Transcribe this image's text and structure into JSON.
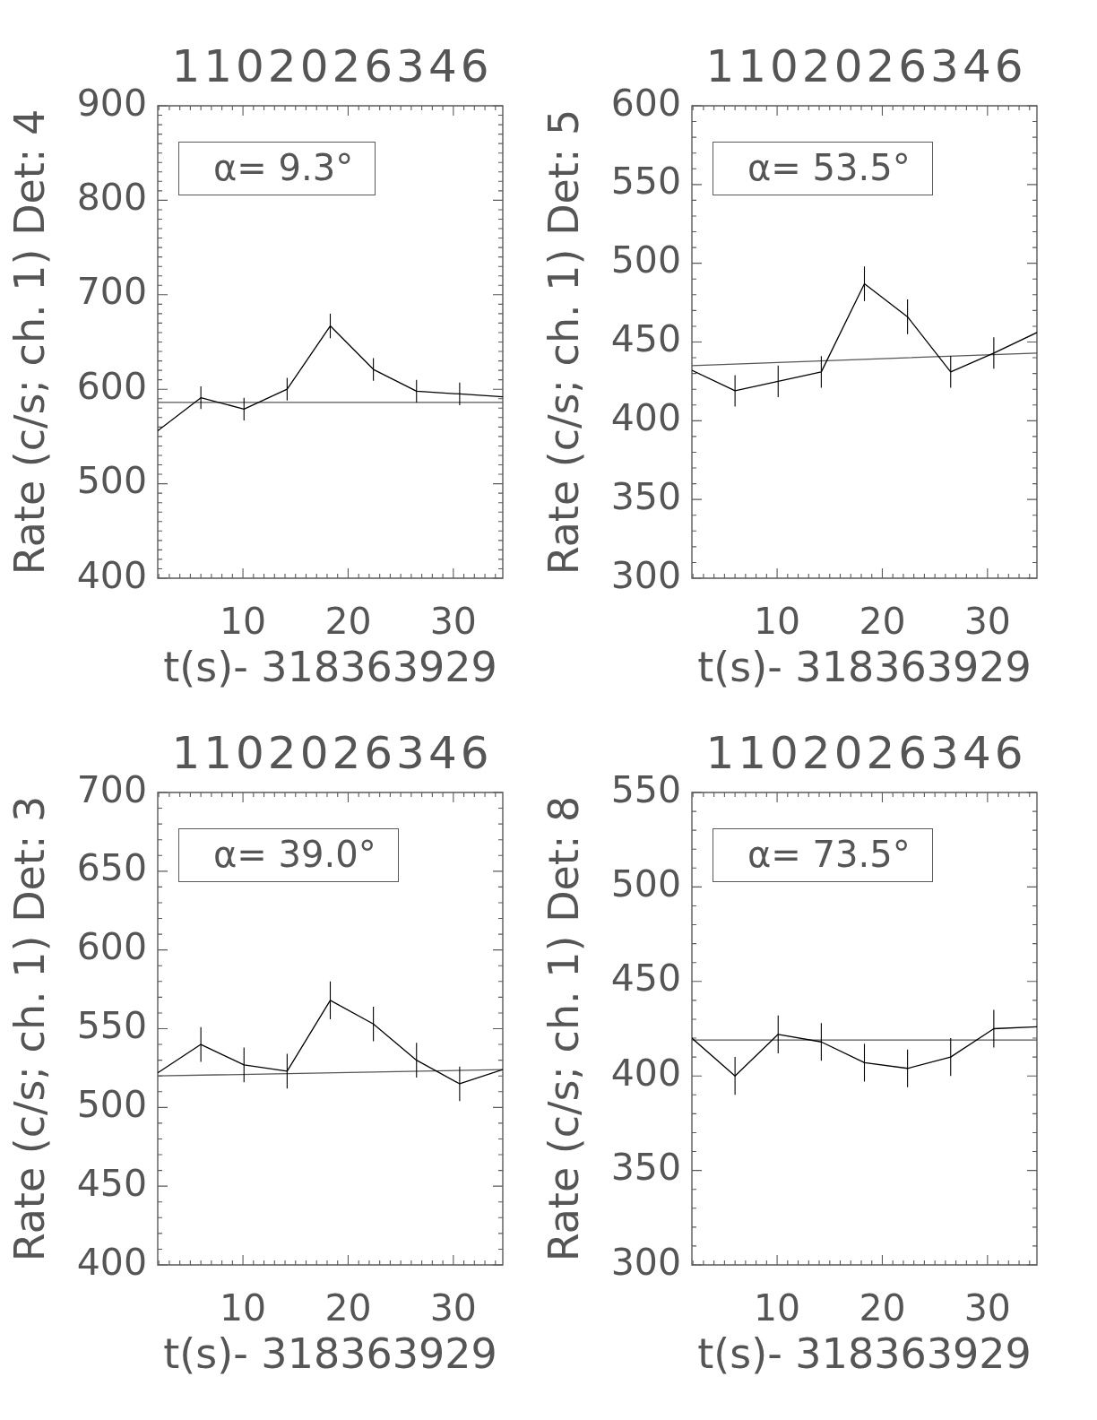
{
  "chart_data": [
    {
      "type": "line",
      "title": "1102026346",
      "xlabel": "t(s)- 318363929",
      "ylabel": "Rate (c/s; ch. 1) Det: 4",
      "annotations": [
        "α= 9.3°"
      ],
      "xlim": [
        1.9,
        34.7
      ],
      "xticks": [
        {
          "value": 2,
          "label": null
        },
        {
          "value": 3,
          "label": null
        },
        {
          "value": 4,
          "label": null
        },
        {
          "value": 5,
          "label": null
        },
        {
          "value": 6,
          "label": null
        },
        {
          "value": 7,
          "label": null
        },
        {
          "value": 8,
          "label": null
        },
        {
          "value": 9,
          "label": null
        },
        10,
        {
          "value": 11,
          "label": null
        },
        {
          "value": 12,
          "label": null
        },
        {
          "value": 13,
          "label": null
        },
        {
          "value": 14,
          "label": null
        },
        {
          "value": 15,
          "label": null
        },
        {
          "value": 16,
          "label": null
        },
        {
          "value": 17,
          "label": null
        },
        {
          "value": 18,
          "label": null
        },
        {
          "value": 19,
          "label": null
        },
        20,
        {
          "value": 21,
          "label": null
        },
        {
          "value": 22,
          "label": null
        },
        {
          "value": 23,
          "label": null
        },
        {
          "value": 24,
          "label": null
        },
        {
          "value": 25,
          "label": null
        },
        {
          "value": 26,
          "label": null
        },
        {
          "value": 27,
          "label": null
        },
        {
          "value": 28,
          "label": null
        },
        {
          "value": 29,
          "label": null
        },
        30,
        {
          "value": 31,
          "label": null
        },
        {
          "value": 32,
          "label": null
        },
        {
          "value": 33,
          "label": null
        },
        {
          "value": 34,
          "label": null
        }
      ],
      "ylim": [
        400,
        900
      ],
      "yticks": [
        400,
        {
          "value": 410,
          "label": null
        },
        {
          "value": 420,
          "label": null
        },
        {
          "value": 430,
          "label": null
        },
        {
          "value": 440,
          "label": null
        },
        {
          "value": 450,
          "label": null
        },
        {
          "value": 460,
          "label": null
        },
        {
          "value": 470,
          "label": null
        },
        {
          "value": 480,
          "label": null
        },
        {
          "value": 490,
          "label": null
        },
        500,
        {
          "value": 510,
          "label": null
        },
        {
          "value": 520,
          "label": null
        },
        {
          "value": 530,
          "label": null
        },
        {
          "value": 540,
          "label": null
        },
        {
          "value": 550,
          "label": null
        },
        {
          "value": 560,
          "label": null
        },
        {
          "value": 570,
          "label": null
        },
        {
          "value": 580,
          "label": null
        },
        {
          "value": 590,
          "label": null
        },
        600,
        {
          "value": 610,
          "label": null
        },
        {
          "value": 620,
          "label": null
        },
        {
          "value": 630,
          "label": null
        },
        {
          "value": 640,
          "label": null
        },
        {
          "value": 650,
          "label": null
        },
        {
          "value": 660,
          "label": null
        },
        {
          "value": 670,
          "label": null
        },
        {
          "value": 680,
          "label": null
        },
        {
          "value": 690,
          "label": null
        },
        700,
        {
          "value": 710,
          "label": null
        },
        {
          "value": 720,
          "label": null
        },
        {
          "value": 730,
          "label": null
        },
        {
          "value": 740,
          "label": null
        },
        {
          "value": 750,
          "label": null
        },
        {
          "value": 760,
          "label": null
        },
        {
          "value": 770,
          "label": null
        },
        {
          "value": 780,
          "label": null
        },
        {
          "value": 790,
          "label": null
        },
        800,
        {
          "value": 810,
          "label": null
        },
        {
          "value": 820,
          "label": null
        },
        {
          "value": 830,
          "label": null
        },
        {
          "value": 840,
          "label": null
        },
        {
          "value": 850,
          "label": null
        },
        {
          "value": 860,
          "label": null
        },
        {
          "value": 870,
          "label": null
        },
        {
          "value": 880,
          "label": null
        },
        {
          "value": 890,
          "label": null
        },
        900
      ],
      "series": [
        {
          "color": "#000000",
          "x": [
            1.9,
            6.0,
            10.1,
            14.2,
            18.3,
            22.4,
            26.5,
            30.6,
            34.7
          ],
          "values": [
            556,
            591,
            579,
            600,
            667,
            621,
            598,
            595,
            592
          ],
          "errors": [
            null,
            12,
            12,
            12,
            13,
            12,
            12,
            12,
            null
          ]
        },
        {
          "type": "line",
          "color": "#555555",
          "x": [
            1.9,
            34.7
          ],
          "values": [
            586,
            586
          ]
        }
      ]
    },
    {
      "type": "line",
      "title": "1102026346",
      "xlabel": "t(s)- 318363929",
      "ylabel": "Rate (c/s; ch. 1) Det: 5",
      "annotations": [
        "α= 53.5°"
      ],
      "xlim": [
        1.9,
        34.7
      ],
      "xticks": [
        {
          "value": 2,
          "label": null
        },
        {
          "value": 3,
          "label": null
        },
        {
          "value": 4,
          "label": null
        },
        {
          "value": 5,
          "label": null
        },
        {
          "value": 6,
          "label": null
        },
        {
          "value": 7,
          "label": null
        },
        {
          "value": 8,
          "label": null
        },
        {
          "value": 9,
          "label": null
        },
        10,
        {
          "value": 11,
          "label": null
        },
        {
          "value": 12,
          "label": null
        },
        {
          "value": 13,
          "label": null
        },
        {
          "value": 14,
          "label": null
        },
        {
          "value": 15,
          "label": null
        },
        {
          "value": 16,
          "label": null
        },
        {
          "value": 17,
          "label": null
        },
        {
          "value": 18,
          "label": null
        },
        {
          "value": 19,
          "label": null
        },
        20,
        {
          "value": 21,
          "label": null
        },
        {
          "value": 22,
          "label": null
        },
        {
          "value": 23,
          "label": null
        },
        {
          "value": 24,
          "label": null
        },
        {
          "value": 25,
          "label": null
        },
        {
          "value": 26,
          "label": null
        },
        {
          "value": 27,
          "label": null
        },
        {
          "value": 28,
          "label": null
        },
        {
          "value": 29,
          "label": null
        },
        30,
        {
          "value": 31,
          "label": null
        },
        {
          "value": 32,
          "label": null
        },
        {
          "value": 33,
          "label": null
        },
        {
          "value": 34,
          "label": null
        }
      ],
      "ylim": [
        300,
        600
      ],
      "yticks": [
        300,
        {
          "value": 310,
          "label": null
        },
        {
          "value": 320,
          "label": null
        },
        {
          "value": 330,
          "label": null
        },
        {
          "value": 340,
          "label": null
        },
        350,
        {
          "value": 360,
          "label": null
        },
        {
          "value": 370,
          "label": null
        },
        {
          "value": 380,
          "label": null
        },
        {
          "value": 390,
          "label": null
        },
        400,
        {
          "value": 410,
          "label": null
        },
        {
          "value": 420,
          "label": null
        },
        {
          "value": 430,
          "label": null
        },
        {
          "value": 440,
          "label": null
        },
        450,
        {
          "value": 460,
          "label": null
        },
        {
          "value": 470,
          "label": null
        },
        {
          "value": 480,
          "label": null
        },
        {
          "value": 490,
          "label": null
        },
        500,
        {
          "value": 510,
          "label": null
        },
        {
          "value": 520,
          "label": null
        },
        {
          "value": 530,
          "label": null
        },
        {
          "value": 540,
          "label": null
        },
        550,
        {
          "value": 560,
          "label": null
        },
        {
          "value": 570,
          "label": null
        },
        {
          "value": 580,
          "label": null
        },
        {
          "value": 590,
          "label": null
        },
        600
      ],
      "series": [
        {
          "color": "#000000",
          "x": [
            1.9,
            6.0,
            10.1,
            14.2,
            18.3,
            22.4,
            26.5,
            30.6,
            34.7
          ],
          "values": [
            432,
            419,
            425,
            431,
            487,
            466,
            431,
            443,
            456
          ],
          "errors": [
            null,
            10,
            10,
            10,
            11,
            11,
            10,
            10,
            null
          ]
        },
        {
          "type": "line",
          "color": "#555555",
          "x": [
            1.9,
            34.7
          ],
          "values": [
            435,
            443
          ]
        }
      ]
    },
    {
      "type": "line",
      "title": "1102026346",
      "xlabel": "t(s)- 318363929",
      "ylabel": "Rate (c/s; ch. 1) Det: 3",
      "annotations": [
        "α= 39.0°"
      ],
      "xlim": [
        1.9,
        34.7
      ],
      "xticks": [
        {
          "value": 2,
          "label": null
        },
        {
          "value": 3,
          "label": null
        },
        {
          "value": 4,
          "label": null
        },
        {
          "value": 5,
          "label": null
        },
        {
          "value": 6,
          "label": null
        },
        {
          "value": 7,
          "label": null
        },
        {
          "value": 8,
          "label": null
        },
        {
          "value": 9,
          "label": null
        },
        10,
        {
          "value": 11,
          "label": null
        },
        {
          "value": 12,
          "label": null
        },
        {
          "value": 13,
          "label": null
        },
        {
          "value": 14,
          "label": null
        },
        {
          "value": 15,
          "label": null
        },
        {
          "value": 16,
          "label": null
        },
        {
          "value": 17,
          "label": null
        },
        {
          "value": 18,
          "label": null
        },
        {
          "value": 19,
          "label": null
        },
        20,
        {
          "value": 21,
          "label": null
        },
        {
          "value": 22,
          "label": null
        },
        {
          "value": 23,
          "label": null
        },
        {
          "value": 24,
          "label": null
        },
        {
          "value": 25,
          "label": null
        },
        {
          "value": 26,
          "label": null
        },
        {
          "value": 27,
          "label": null
        },
        {
          "value": 28,
          "label": null
        },
        {
          "value": 29,
          "label": null
        },
        30,
        {
          "value": 31,
          "label": null
        },
        {
          "value": 32,
          "label": null
        },
        {
          "value": 33,
          "label": null
        },
        {
          "value": 34,
          "label": null
        }
      ],
      "ylim": [
        400,
        700
      ],
      "yticks": [
        400,
        {
          "value": 410,
          "label": null
        },
        {
          "value": 420,
          "label": null
        },
        {
          "value": 430,
          "label": null
        },
        {
          "value": 440,
          "label": null
        },
        450,
        {
          "value": 460,
          "label": null
        },
        {
          "value": 470,
          "label": null
        },
        {
          "value": 480,
          "label": null
        },
        {
          "value": 490,
          "label": null
        },
        500,
        {
          "value": 510,
          "label": null
        },
        {
          "value": 520,
          "label": null
        },
        {
          "value": 530,
          "label": null
        },
        {
          "value": 540,
          "label": null
        },
        550,
        {
          "value": 560,
          "label": null
        },
        {
          "value": 570,
          "label": null
        },
        {
          "value": 580,
          "label": null
        },
        {
          "value": 590,
          "label": null
        },
        600,
        {
          "value": 610,
          "label": null
        },
        {
          "value": 620,
          "label": null
        },
        {
          "value": 630,
          "label": null
        },
        {
          "value": 640,
          "label": null
        },
        650,
        {
          "value": 660,
          "label": null
        },
        {
          "value": 670,
          "label": null
        },
        {
          "value": 680,
          "label": null
        },
        {
          "value": 690,
          "label": null
        },
        700
      ],
      "series": [
        {
          "color": "#000000",
          "x": [
            1.9,
            6.0,
            10.1,
            14.2,
            18.3,
            22.4,
            26.5,
            30.6,
            34.7
          ],
          "values": [
            522,
            540,
            527,
            523,
            568,
            553,
            530,
            515,
            524
          ],
          "errors": [
            null,
            11,
            11,
            11,
            12,
            11,
            11,
            11,
            null
          ]
        },
        {
          "type": "line",
          "color": "#555555",
          "x": [
            1.9,
            34.7
          ],
          "values": [
            520,
            524
          ]
        }
      ]
    },
    {
      "type": "line",
      "title": "1102026346",
      "xlabel": "t(s)- 318363929",
      "ylabel": "Rate (c/s; ch. 1) Det: 8",
      "annotations": [
        "α= 73.5°"
      ],
      "xlim": [
        1.9,
        34.7
      ],
      "xticks": [
        {
          "value": 2,
          "label": null
        },
        {
          "value": 3,
          "label": null
        },
        {
          "value": 4,
          "label": null
        },
        {
          "value": 5,
          "label": null
        },
        {
          "value": 6,
          "label": null
        },
        {
          "value": 7,
          "label": null
        },
        {
          "value": 8,
          "label": null
        },
        {
          "value": 9,
          "label": null
        },
        10,
        {
          "value": 11,
          "label": null
        },
        {
          "value": 12,
          "label": null
        },
        {
          "value": 13,
          "label": null
        },
        {
          "value": 14,
          "label": null
        },
        {
          "value": 15,
          "label": null
        },
        {
          "value": 16,
          "label": null
        },
        {
          "value": 17,
          "label": null
        },
        {
          "value": 18,
          "label": null
        },
        {
          "value": 19,
          "label": null
        },
        20,
        {
          "value": 21,
          "label": null
        },
        {
          "value": 22,
          "label": null
        },
        {
          "value": 23,
          "label": null
        },
        {
          "value": 24,
          "label": null
        },
        {
          "value": 25,
          "label": null
        },
        {
          "value": 26,
          "label": null
        },
        {
          "value": 27,
          "label": null
        },
        {
          "value": 28,
          "label": null
        },
        {
          "value": 29,
          "label": null
        },
        30,
        {
          "value": 31,
          "label": null
        },
        {
          "value": 32,
          "label": null
        },
        {
          "value": 33,
          "label": null
        },
        {
          "value": 34,
          "label": null
        }
      ],
      "ylim": [
        300,
        550
      ],
      "yticks": [
        300,
        {
          "value": 310,
          "label": null
        },
        {
          "value": 320,
          "label": null
        },
        {
          "value": 330,
          "label": null
        },
        {
          "value": 340,
          "label": null
        },
        350,
        {
          "value": 360,
          "label": null
        },
        {
          "value": 370,
          "label": null
        },
        {
          "value": 380,
          "label": null
        },
        {
          "value": 390,
          "label": null
        },
        400,
        {
          "value": 410,
          "label": null
        },
        {
          "value": 420,
          "label": null
        },
        {
          "value": 430,
          "label": null
        },
        {
          "value": 440,
          "label": null
        },
        450,
        {
          "value": 460,
          "label": null
        },
        {
          "value": 470,
          "label": null
        },
        {
          "value": 480,
          "label": null
        },
        {
          "value": 490,
          "label": null
        },
        500,
        {
          "value": 510,
          "label": null
        },
        {
          "value": 520,
          "label": null
        },
        {
          "value": 530,
          "label": null
        },
        {
          "value": 540,
          "label": null
        },
        550
      ],
      "series": [
        {
          "color": "#000000",
          "x": [
            1.9,
            6.0,
            10.1,
            14.2,
            18.3,
            22.4,
            26.5,
            30.6,
            34.7
          ],
          "values": [
            420,
            400,
            422,
            418,
            407,
            404,
            410,
            425,
            426
          ],
          "errors": [
            null,
            10,
            10,
            10,
            10,
            10,
            10,
            10,
            null
          ]
        },
        {
          "type": "line",
          "color": "#555555",
          "x": [
            1.9,
            34.7
          ],
          "values": [
            419,
            419
          ]
        }
      ]
    }
  ]
}
